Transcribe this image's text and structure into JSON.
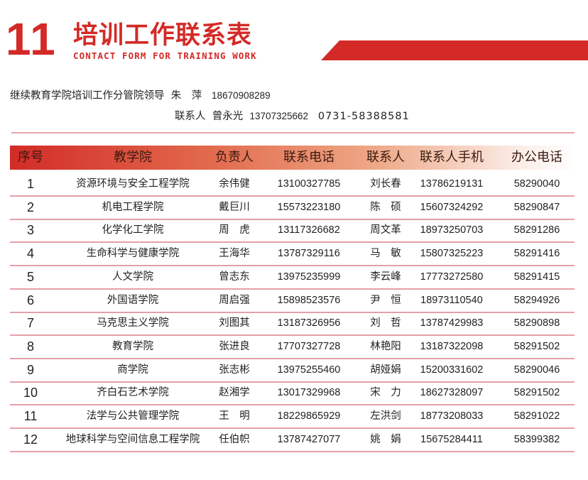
{
  "header": {
    "number": "11",
    "title": "培训工作联系表",
    "subtitle": "CONTACT FORM FOR TRAINING WORK",
    "accent_color": "#d32a27"
  },
  "contacts": {
    "leader_label": "继续教育学院培训工作分管院领导",
    "leader_name": "朱　萍",
    "leader_phone": "18670908289",
    "contact_label": "联系人",
    "contact_name": "曾永光",
    "contact_phone": "13707325662",
    "contact_tel": "0731-58388581"
  },
  "table": {
    "columns": [
      "序号",
      "教学院",
      "负责人",
      "联系电话",
      "联系人",
      "联系人手机",
      "办公电话"
    ],
    "rows": [
      [
        "1",
        "资源环境与安全工程学院",
        "余伟健",
        "13100327785",
        "刘长春",
        "13786219131",
        "58290040"
      ],
      [
        "2",
        "机电工程学院",
        "戴巨川",
        "15573223180",
        "陈　硕",
        "15607324292",
        "58290847"
      ],
      [
        "3",
        "化学化工学院",
        "周　虎",
        "13117326682",
        "周文革",
        "18973250703",
        "58291286"
      ],
      [
        "4",
        "生命科学与健康学院",
        "王海华",
        "13787329116",
        "马　敏",
        "15807325223",
        "58291416"
      ],
      [
        "5",
        "人文学院",
        "曾志东",
        "13975235999",
        "李云峰",
        "17773272580",
        "58291415"
      ],
      [
        "6",
        "外国语学院",
        "周启强",
        "15898523576",
        "尹　恒",
        "18973110540",
        "58294926"
      ],
      [
        "7",
        "马克思主义学院",
        "刘图其",
        "13187326956",
        "刘　哲",
        "13787429983",
        "58290898"
      ],
      [
        "8",
        "教育学院",
        "张进良",
        "17707327728",
        "林艳阳",
        "13187322098",
        "58291502"
      ],
      [
        "9",
        "商学院",
        "张志彬",
        "13975255460",
        "胡娅娟",
        "15200331602",
        "58290046"
      ],
      [
        "10",
        "齐白石艺术学院",
        "赵湘学",
        "13017329968",
        "宋　力",
        "18627328097",
        "58291502"
      ],
      [
        "11",
        "法学与公共管理学院",
        "王　明",
        "18229865929",
        "左洪剑",
        "18773208033",
        "58291022"
      ],
      [
        "12",
        "地球科学与空间信息工程学院",
        "任伯帜",
        "13787427077",
        "姚　娟",
        "15675284411",
        "58399382"
      ]
    ]
  }
}
